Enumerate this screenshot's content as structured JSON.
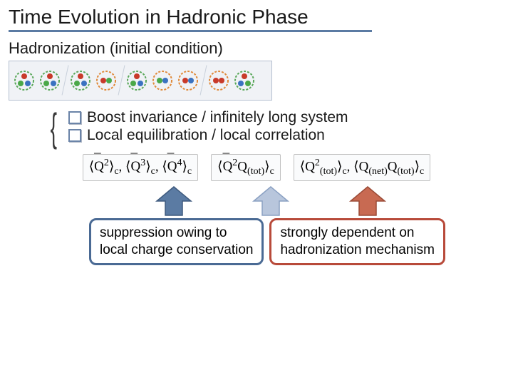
{
  "title": "Time Evolution in Hadronic Phase",
  "title_underline_color": "#5b7ba3",
  "subtitle": "Hadronization (initial condition)",
  "particles": {
    "background": "#f0f2f6",
    "border_color": "#b5c0d0",
    "colors": {
      "r": "#c83a2a",
      "g": "#4aa848",
      "b": "#3a72c0"
    },
    "circle_colors": {
      "green": "#5aa85a",
      "orange": "#e08a3a"
    },
    "items": [
      {
        "circle": "green",
        "dots": [
          "r",
          "g",
          "b"
        ]
      },
      {
        "circle": "green",
        "dots": [
          "r",
          "g",
          "b"
        ]
      },
      {
        "sep": true
      },
      {
        "circle": "green",
        "dots": [
          "r",
          "g",
          "b"
        ]
      },
      {
        "circle": "orange",
        "dots": [
          "r",
          "g"
        ]
      },
      {
        "sep": true
      },
      {
        "circle": "green",
        "dots": [
          "r",
          "g",
          "b"
        ]
      },
      {
        "circle": "orange",
        "dots": [
          "g",
          "b"
        ]
      },
      {
        "circle": "orange",
        "dots": [
          "r",
          "b"
        ]
      },
      {
        "sep": true
      },
      {
        "circle": "orange",
        "dots": [
          "r",
          "r"
        ]
      },
      {
        "circle": "green",
        "dots": [
          "r",
          "b",
          "g"
        ]
      }
    ]
  },
  "bullets": [
    "Boost invariance / infinitely long system",
    "Local equilibration / local correlation"
  ],
  "bullet_style": {
    "border_color": "#6b84a8"
  },
  "formulas": {
    "left": "⟨Q̄²⟩c, ⟨Q̄³⟩c, ⟨Q̄⁴⟩c",
    "mid": "⟨Q̄²Q(tot)⟩c",
    "right": "⟨Q²(tot)⟩c, ⟨Q(net)Q(tot)⟩c"
  },
  "arrows": [
    {
      "fill": "#5b7ba3",
      "stroke": "#3e5a7e"
    },
    {
      "fill": "#b8c6dc",
      "stroke": "#8aa0c2"
    },
    {
      "fill": "#c86a52",
      "stroke": "#9a4a36"
    }
  ],
  "conclusions": {
    "left": {
      "line1": "suppression owing to",
      "line2": "local charge conservation",
      "border": "#4a6a94"
    },
    "right": {
      "line1": "strongly dependent on",
      "line2": "hadronization mechanism",
      "border": "#b84a3a"
    }
  }
}
